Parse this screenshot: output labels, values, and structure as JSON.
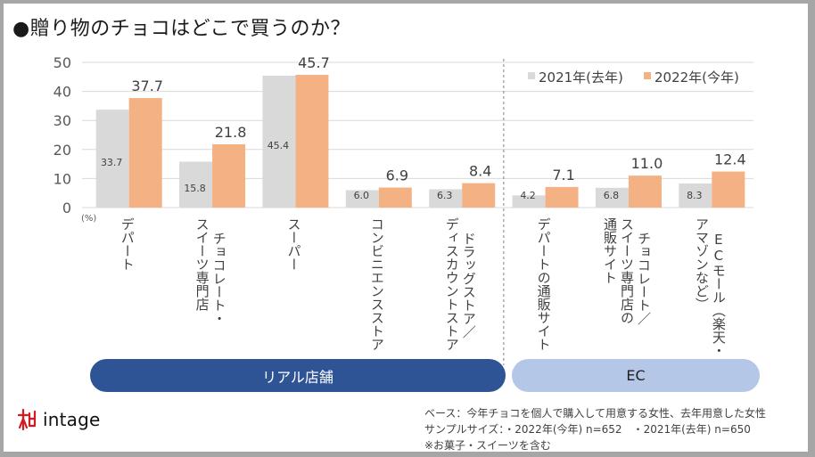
{
  "title": "●贈り物のチョコはどこで買うのか？",
  "chart_data": {
    "type": "bar",
    "title": "●贈り物のチョコはどこで買うのか？",
    "xlabel": "",
    "ylabel": "(%)",
    "ylim": [
      0,
      50
    ],
    "yticks": [
      0,
      10,
      20,
      30,
      40,
      50
    ],
    "grid": true,
    "legend_position": "top-right",
    "categories": [
      [
        "デパート"
      ],
      [
        "チョコレート・",
        "スイーツ専門店"
      ],
      [
        "スーパー"
      ],
      [
        "コンビニエンスストア"
      ],
      [
        "ドラッグストア／",
        "ディスカウントストア"
      ],
      [
        "デパートの通販サイト"
      ],
      [
        "チョコレート／",
        "スイーツ専門店の",
        "通販サイト"
      ],
      [
        "ECモール（楽天・",
        "アマゾンなど）"
      ]
    ],
    "series": [
      {
        "name": "2021年(去年)",
        "color": "#d9d9d9",
        "values": [
          33.7,
          15.8,
          45.4,
          6.0,
          6.3,
          4.2,
          6.8,
          8.3
        ]
      },
      {
        "name": "2022年(今年)",
        "color": "#f4b183",
        "values": [
          37.7,
          21.8,
          45.7,
          6.9,
          8.4,
          7.1,
          11.0,
          12.4
        ]
      }
    ],
    "groups": [
      {
        "label": "リアル店舗",
        "categories": [
          0,
          1,
          2,
          3,
          4
        ],
        "color": "#2f5496"
      },
      {
        "label": "EC",
        "categories": [
          5,
          6,
          7
        ],
        "color": "#b4c7e7"
      }
    ]
  },
  "footer": {
    "logo_text": "intage",
    "notes": [
      "ベース：今年チョコを個人で購入して用意する女性、去年用意した女性",
      "サンプルサイズ：・2022年(今年) n=652　・2021年(去年) n=650",
      "※お菓子・スイーツを含む"
    ]
  }
}
